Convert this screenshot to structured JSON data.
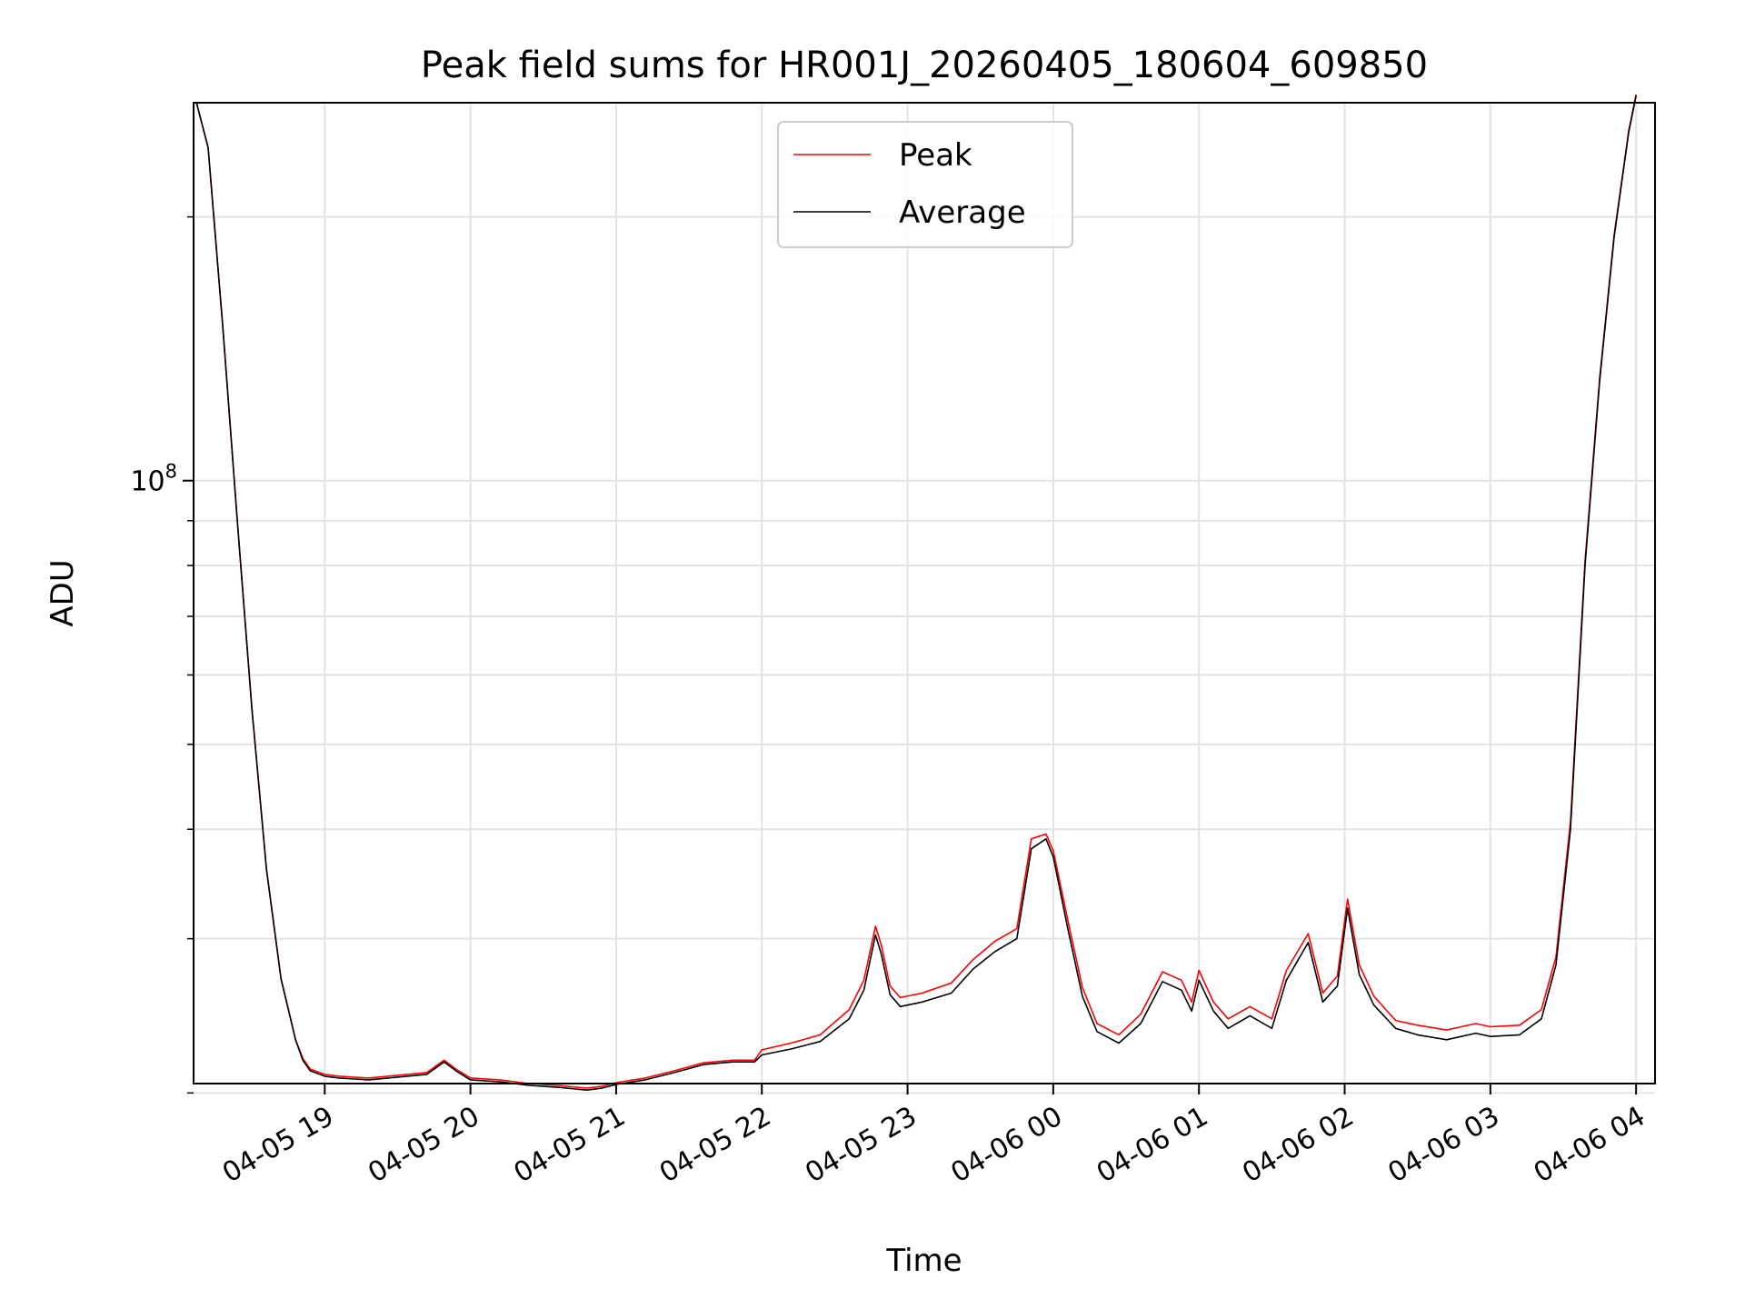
{
  "chart_data": {
    "type": "line",
    "title": "Peak field sums for HR001J_20260405_180604_609850",
    "xlabel": "Time",
    "ylabel": "ADU",
    "yscale": "log",
    "ylim": [
      20500000,
      270000000
    ],
    "y_major_ticks": [
      {
        "value": 100000000,
        "label": "10",
        "exponent": "8"
      }
    ],
    "y_minor_ticks": [
      20000000,
      30000000,
      40000000,
      50000000,
      60000000,
      70000000,
      80000000,
      90000000,
      200000000
    ],
    "xlim": [
      18.1,
      28.13
    ],
    "x_ticks": [
      {
        "value": 19,
        "label": "04-05 19"
      },
      {
        "value": 20,
        "label": "04-05 20"
      },
      {
        "value": 21,
        "label": "04-05 21"
      },
      {
        "value": 22,
        "label": "04-05 22"
      },
      {
        "value": 23,
        "label": "04-05 23"
      },
      {
        "value": 24,
        "label": "04-06 00"
      },
      {
        "value": 25,
        "label": "04-06 01"
      },
      {
        "value": 26,
        "label": "04-06 02"
      },
      {
        "value": 27,
        "label": "04-06 03"
      },
      {
        "value": 28,
        "label": "04-06 04"
      }
    ],
    "grid": true,
    "legend": {
      "position": "top-center",
      "entries": [
        {
          "name": "Peak",
          "color": "#ff0000"
        },
        {
          "name": "Average",
          "color": "#000000"
        }
      ]
    },
    "x_units": "hours since 04-05 00:00",
    "series": [
      {
        "name": "Average",
        "color": "#000000",
        "x": [
          18.12,
          18.2,
          18.3,
          18.4,
          18.5,
          18.6,
          18.7,
          18.8,
          18.85,
          18.9,
          19.0,
          19.1,
          19.3,
          19.5,
          19.7,
          19.82,
          19.9,
          20.0,
          20.2,
          20.4,
          20.6,
          20.8,
          20.9,
          21.0,
          21.2,
          21.4,
          21.6,
          21.8,
          21.95,
          22.0,
          22.2,
          22.4,
          22.6,
          22.7,
          22.78,
          22.82,
          22.88,
          22.95,
          23.1,
          23.3,
          23.45,
          23.6,
          23.75,
          23.85,
          23.95,
          24.0,
          24.1,
          24.2,
          24.3,
          24.45,
          24.6,
          24.75,
          24.88,
          24.95,
          25.0,
          25.1,
          25.2,
          25.35,
          25.5,
          25.6,
          25.75,
          25.85,
          25.95,
          26.02,
          26.1,
          26.2,
          26.35,
          26.5,
          26.7,
          26.8,
          26.9,
          27.0,
          27.2,
          27.35,
          27.45,
          27.55,
          27.65,
          27.75,
          27.85,
          27.95,
          28.0
        ],
        "values": [
          270000000,
          240000000,
          150000000,
          90000000,
          55000000,
          36000000,
          27000000,
          23000000,
          21800000,
          21200000,
          20900000,
          20800000,
          20700000,
          20850000,
          21000000,
          21700000,
          21200000,
          20700000,
          20600000,
          20400000,
          20300000,
          20150000,
          20250000,
          20450000,
          20700000,
          21100000,
          21550000,
          21700000,
          21700000,
          22100000,
          22450000,
          22900000,
          24300000,
          26200000,
          30300000,
          28800000,
          25900000,
          25100000,
          25400000,
          26000000,
          27700000,
          29000000,
          30000000,
          38000000,
          39000000,
          37200000,
          30800000,
          25800000,
          23500000,
          22800000,
          24000000,
          26800000,
          26200000,
          24800000,
          26900000,
          24800000,
          23700000,
          24500000,
          23700000,
          26900000,
          29700000,
          25400000,
          26500000,
          32500000,
          27300000,
          25200000,
          23700000,
          23300000,
          23000000,
          23200000,
          23400000,
          23200000,
          23300000,
          24300000,
          28000000,
          40000000,
          80000000,
          130000000,
          190000000,
          250000000,
          275000000
        ]
      },
      {
        "name": "Peak",
        "color": "#ff0000",
        "x": [
          18.12,
          18.2,
          18.3,
          18.4,
          18.5,
          18.6,
          18.7,
          18.8,
          18.85,
          18.9,
          19.0,
          19.1,
          19.3,
          19.5,
          19.7,
          19.82,
          19.9,
          20.0,
          20.2,
          20.4,
          20.6,
          20.8,
          20.9,
          21.0,
          21.2,
          21.4,
          21.6,
          21.8,
          21.95,
          22.0,
          22.2,
          22.4,
          22.6,
          22.7,
          22.78,
          22.82,
          22.88,
          22.95,
          23.1,
          23.3,
          23.45,
          23.6,
          23.75,
          23.85,
          23.95,
          24.0,
          24.1,
          24.2,
          24.3,
          24.45,
          24.6,
          24.75,
          24.88,
          24.95,
          25.0,
          25.1,
          25.2,
          25.35,
          25.5,
          25.6,
          25.75,
          25.85,
          25.95,
          26.02,
          26.1,
          26.2,
          26.35,
          26.5,
          26.7,
          26.8,
          26.9,
          27.0,
          27.2,
          27.35,
          27.45,
          27.55,
          27.65,
          27.75,
          27.85,
          27.95,
          28.0
        ],
        "values": [
          270000000,
          240000000,
          150000000,
          90000000,
          55000000,
          36000000,
          27000000,
          23000000,
          21900000,
          21300000,
          21000000,
          20900000,
          20800000,
          20950000,
          21100000,
          21800000,
          21300000,
          20800000,
          20700000,
          20500000,
          20400000,
          20250000,
          20350000,
          20550000,
          20800000,
          21200000,
          21650000,
          21800000,
          21800000,
          22400000,
          22800000,
          23300000,
          24900000,
          26900000,
          31000000,
          29500000,
          26500000,
          25700000,
          26000000,
          26700000,
          28400000,
          29800000,
          30800000,
          39000000,
          39500000,
          37800000,
          31500000,
          26400000,
          24000000,
          23300000,
          24600000,
          27500000,
          26900000,
          25400000,
          27600000,
          25400000,
          24300000,
          25100000,
          24300000,
          27600000,
          30400000,
          26000000,
          27200000,
          33300000,
          28000000,
          25800000,
          24200000,
          23900000,
          23600000,
          23800000,
          24000000,
          23800000,
          23900000,
          24900000,
          28600000,
          40800000,
          81000000,
          131000000,
          191000000,
          251000000,
          276000000
        ]
      }
    ]
  }
}
